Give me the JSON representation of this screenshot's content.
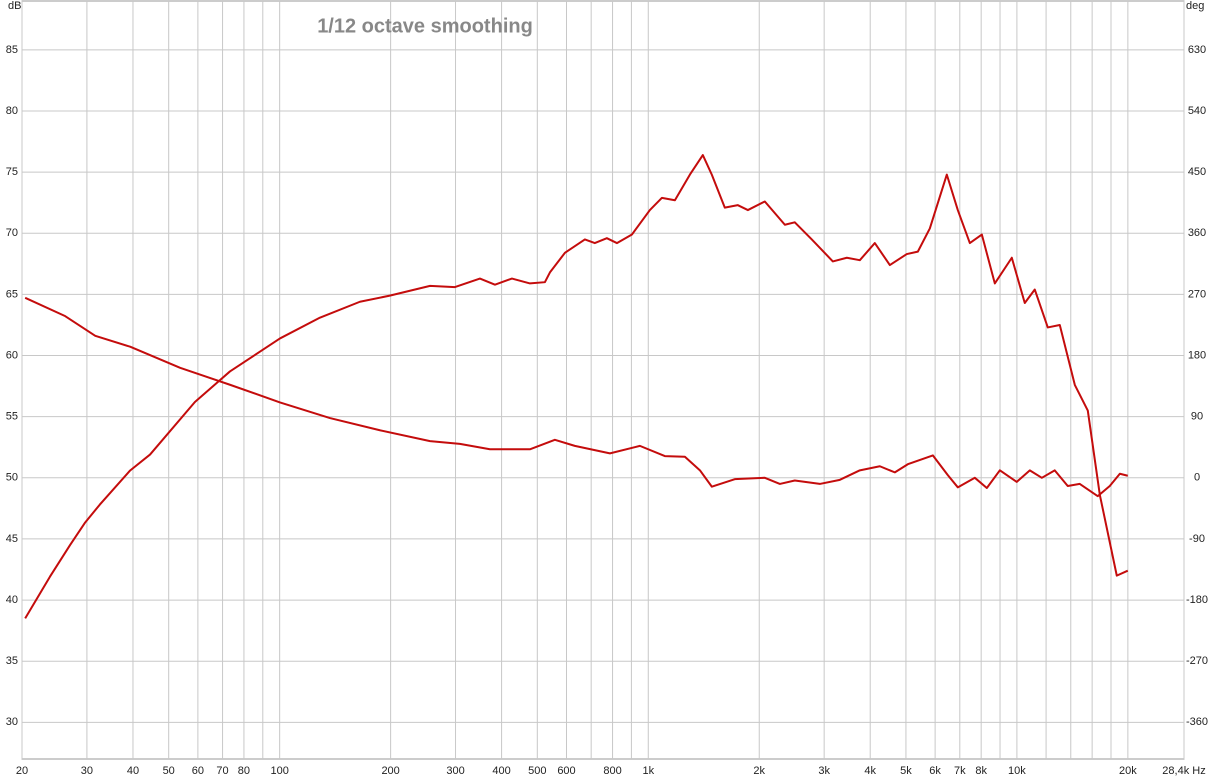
{
  "chart_data": {
    "type": "line",
    "title": "1/12 octave smoothing",
    "ylabel": "dB",
    "y2label": "deg",
    "log_x": true,
    "grid": true,
    "xlim": [
      20,
      28400
    ],
    "xticks": [
      20,
      30,
      40,
      50,
      60,
      70,
      80,
      100,
      200,
      300,
      400,
      500,
      600,
      800,
      {
        "value": 1000,
        "label": "1k"
      },
      {
        "value": 2000,
        "label": "2k"
      },
      {
        "value": 3000,
        "label": "3k"
      },
      {
        "value": 4000,
        "label": "4k"
      },
      {
        "value": 5000,
        "label": "5k"
      },
      {
        "value": 6000,
        "label": "6k"
      },
      {
        "value": 7000,
        "label": "7k"
      },
      {
        "value": 8000,
        "label": "8k"
      },
      {
        "value": 10000,
        "label": "10k"
      },
      {
        "value": 20000,
        "label": "20k"
      },
      {
        "value": 28400,
        "label": "28,4k Hz"
      }
    ],
    "xminor": [
      90,
      700,
      900,
      9000,
      12000,
      14000,
      16000,
      18000
    ],
    "ylim": [
      27,
      89
    ],
    "yticks": [
      30,
      35,
      40,
      45,
      50,
      55,
      60,
      65,
      70,
      75,
      80,
      85
    ],
    "y2lim": [
      -414,
      702
    ],
    "y2ticks": [
      -360,
      -270,
      -180,
      -90,
      0,
      90,
      180,
      270,
      360,
      450,
      540,
      630
    ],
    "series": [
      {
        "color": "#c40c0c",
        "axis": "y",
        "x": [
          20.4,
          23.8,
          27.0,
          29.6,
          32.5,
          39.3,
          44.5,
          58.9,
          73.3,
          100.2,
          128.6,
          165.1,
          199,
          255.8,
          298.9,
          349.4,
          383.8,
          426.8,
          477.5,
          524.2,
          541,
          594,
          673,
          716,
          772,
          822,
          903,
          1010,
          1089,
          1181,
          1297,
          1406,
          1487,
          1613,
          1750,
          1863,
          2071,
          2347,
          2497,
          2777,
          3167,
          3457,
          3749,
          4117,
          4522,
          5027,
          5386,
          5805,
          6455,
          6913,
          7453,
          8033,
          8711,
          9687,
          10504,
          11182,
          12128,
          13072,
          14359,
          15571,
          16787,
          18663,
          19986
        ],
        "values": [
          38.5,
          41.9,
          44.5,
          46.3,
          47.8,
          50.6,
          51.9,
          56.2,
          58.7,
          61.4,
          63.1,
          64.4,
          64.9,
          65.7,
          65.6,
          66.3,
          65.8,
          66.3,
          65.9,
          66.0,
          66.8,
          68.4,
          69.5,
          69.2,
          69.6,
          69.2,
          69.9,
          71.9,
          72.9,
          72.7,
          74.8,
          76.4,
          74.8,
          72.1,
          72.3,
          71.9,
          72.6,
          70.7,
          70.9,
          69.5,
          67.7,
          68.0,
          67.8,
          69.2,
          67.4,
          68.3,
          68.5,
          70.4,
          74.8,
          71.9,
          69.2,
          69.9,
          65.9,
          68.0,
          64.3,
          65.4,
          62.3,
          62.5,
          57.6,
          55.5,
          48.6,
          42.0,
          42.4
        ]
      },
      {
        "color": "#c40c0c",
        "axis": "y2",
        "x": [
          20.4,
          26.2,
          31.6,
          39.3,
          53.7,
          73.3,
          100.2,
          136.9,
          187.0,
          255.8,
          308.3,
          371.9,
          477.5,
          558,
          632,
          787,
          949,
          1109,
          1257,
          1381,
          1487,
          1717,
          2071,
          2275,
          2497,
          2920,
          3309,
          3749,
          4248,
          4665,
          5059,
          5915,
          6495,
          6913,
          7690,
          8288,
          8990,
          9991,
          10840,
          11686,
          12666,
          13739,
          14811,
          16574,
          17862,
          19023,
          19986
        ],
        "values": [
          265,
          238,
          209,
          193,
          162,
          137,
          111,
          88,
          70,
          54,
          50,
          42,
          42,
          56,
          47,
          36,
          47,
          32,
          31,
          11,
          -13,
          -2,
          0,
          -9,
          -4,
          -9,
          -3,
          11,
          17,
          8,
          20,
          33,
          4,
          -14,
          0,
          -15,
          11,
          -6,
          11,
          0,
          11,
          -12,
          -9,
          -27,
          -12,
          6,
          3
        ]
      }
    ]
  }
}
